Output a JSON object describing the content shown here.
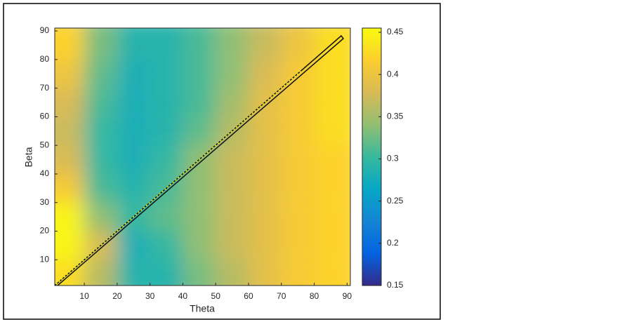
{
  "chart_data": {
    "type": "contour",
    "xlabel": "Theta",
    "ylabel": "Beta",
    "x": [
      5,
      15,
      25,
      35,
      45,
      55,
      65,
      75,
      85
    ],
    "y": [
      5,
      15,
      25,
      35,
      45,
      55,
      65,
      75,
      85
    ],
    "z": [
      [
        0.43,
        0.36,
        0.29,
        0.29,
        0.33,
        0.36,
        0.39,
        0.41,
        0.42
      ],
      [
        0.45,
        0.38,
        0.28,
        0.3,
        0.34,
        0.37,
        0.39,
        0.41,
        0.42
      ],
      [
        0.45,
        0.34,
        0.3,
        0.32,
        0.34,
        0.37,
        0.39,
        0.41,
        0.42
      ],
      [
        0.41,
        0.31,
        0.29,
        0.31,
        0.34,
        0.37,
        0.39,
        0.41,
        0.42
      ],
      [
        0.38,
        0.3,
        0.28,
        0.3,
        0.34,
        0.37,
        0.39,
        0.41,
        0.42
      ],
      [
        0.37,
        0.3,
        0.28,
        0.29,
        0.32,
        0.36,
        0.39,
        0.41,
        0.43
      ],
      [
        0.38,
        0.31,
        0.28,
        0.29,
        0.31,
        0.35,
        0.39,
        0.41,
        0.43
      ],
      [
        0.4,
        0.32,
        0.28,
        0.29,
        0.31,
        0.34,
        0.38,
        0.41,
        0.43
      ],
      [
        0.42,
        0.33,
        0.29,
        0.29,
        0.31,
        0.34,
        0.37,
        0.4,
        0.43
      ]
    ],
    "xlim": [
      1,
      91
    ],
    "ylim": [
      1,
      91
    ],
    "xticks": [
      10,
      20,
      30,
      40,
      50,
      60,
      70,
      80,
      90
    ],
    "yticks": [
      10,
      20,
      30,
      40,
      50,
      60,
      70,
      80,
      90
    ],
    "clim": [
      0.15,
      0.455
    ],
    "cticks": [
      0.15,
      0.2,
      0.25,
      0.3,
      0.35,
      0.4,
      0.45
    ],
    "colormap": [
      "#352a87",
      "#0363e1",
      "#1485d4",
      "#06a7c6",
      "#38b99e",
      "#92bf73",
      "#d9ba56",
      "#fcce2e",
      "#f9fb0e"
    ]
  }
}
